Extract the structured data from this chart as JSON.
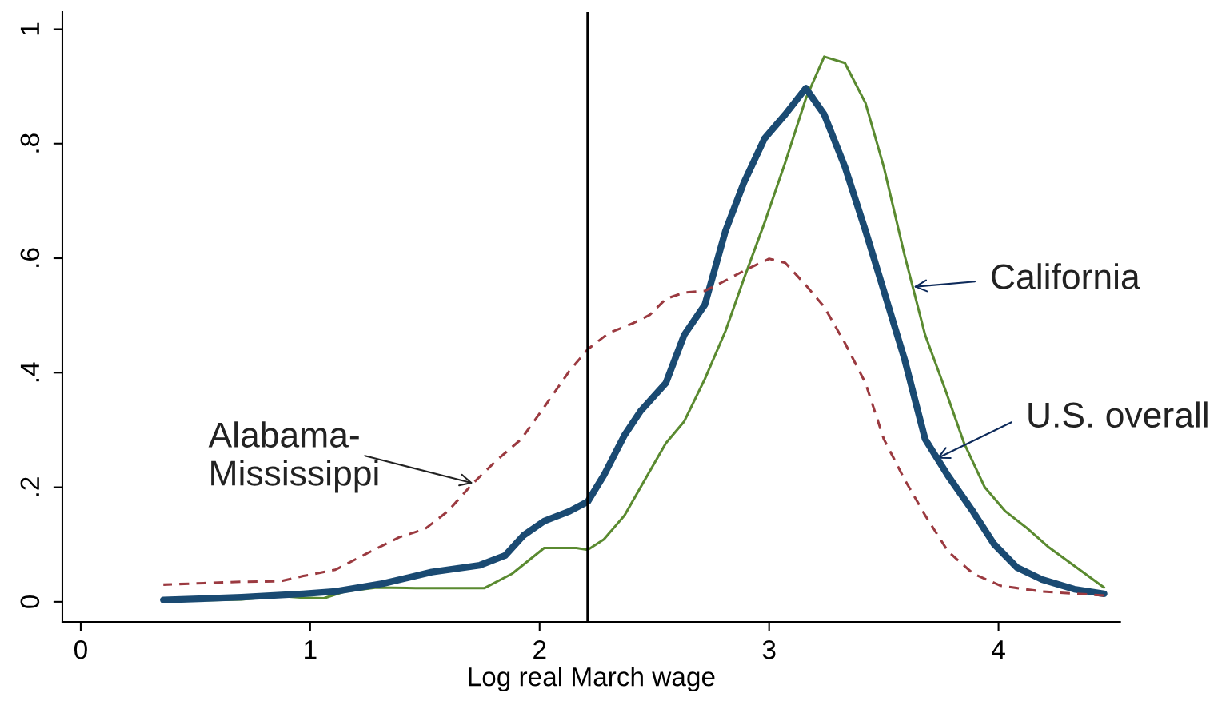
{
  "chart_data": {
    "type": "line",
    "xlabel": "Log real March wage",
    "series": [
      {
        "color": "#9b3a40",
        "line_style": "dashed",
        "x": [
          0.36,
          0.7,
          0.87,
          0.97,
          1.11,
          1.25,
          1.39,
          1.5,
          1.6,
          1.71,
          1.81,
          1.92,
          2.02,
          2.13,
          2.21,
          2.3,
          2.41,
          2.48,
          2.55,
          2.63,
          2.72,
          2.81,
          2.89,
          3.0,
          3.07,
          3.16,
          3.24,
          3.33,
          3.42,
          3.5,
          3.59,
          3.68,
          3.78,
          3.89,
          4.01,
          4.19,
          4.46
        ],
        "values": [
          0.03,
          0.035,
          0.036,
          0.045,
          0.056,
          0.085,
          0.113,
          0.127,
          0.158,
          0.207,
          0.246,
          0.284,
          0.34,
          0.403,
          0.441,
          0.469,
          0.487,
          0.501,
          0.529,
          0.54,
          0.543,
          0.561,
          0.578,
          0.599,
          0.592,
          0.553,
          0.515,
          0.452,
          0.382,
          0.284,
          0.214,
          0.151,
          0.088,
          0.049,
          0.028,
          0.018,
          0.011
        ]
      },
      {
        "color": "#5a8a30",
        "line_style": "solid",
        "x": [
          0.36,
          0.7,
          0.87,
          0.97,
          1.06,
          1.15,
          1.29,
          1.46,
          1.76,
          1.88,
          2.02,
          2.16,
          2.21,
          2.28,
          2.37,
          2.46,
          2.55,
          2.63,
          2.72,
          2.81,
          2.89,
          2.98,
          3.07,
          3.16,
          3.24,
          3.33,
          3.42,
          3.5,
          3.59,
          3.68,
          3.77,
          3.85,
          3.94,
          4.03,
          4.12,
          4.22,
          4.46
        ],
        "values": [
          0.001,
          0.004,
          0.01,
          0.007,
          0.006,
          0.018,
          0.025,
          0.024,
          0.024,
          0.049,
          0.094,
          0.094,
          0.091,
          0.109,
          0.151,
          0.214,
          0.277,
          0.315,
          0.389,
          0.473,
          0.564,
          0.662,
          0.767,
          0.879,
          0.952,
          0.941,
          0.871,
          0.759,
          0.606,
          0.466,
          0.368,
          0.277,
          0.2,
          0.158,
          0.13,
          0.095,
          0.025
        ]
      },
      {
        "color": "#1a4a72",
        "line_style": "solid",
        "x": [
          0.36,
          0.7,
          0.97,
          1.11,
          1.32,
          1.53,
          1.74,
          1.85,
          1.93,
          2.02,
          2.13,
          2.21,
          2.28,
          2.37,
          2.44,
          2.55,
          2.63,
          2.72,
          2.81,
          2.89,
          2.98,
          3.07,
          3.16,
          3.24,
          3.33,
          3.42,
          3.5,
          3.59,
          3.68,
          3.78,
          3.89,
          3.98,
          4.08,
          4.19,
          4.33,
          4.46
        ],
        "values": [
          0.003,
          0.008,
          0.014,
          0.018,
          0.032,
          0.052,
          0.064,
          0.081,
          0.116,
          0.141,
          0.158,
          0.175,
          0.221,
          0.291,
          0.333,
          0.382,
          0.466,
          0.519,
          0.648,
          0.732,
          0.809,
          0.851,
          0.897,
          0.851,
          0.76,
          0.648,
          0.543,
          0.424,
          0.284,
          0.22,
          0.157,
          0.101,
          0.06,
          0.039,
          0.022,
          0.014
        ]
      }
    ],
    "ref_lines": [
      {
        "axis": "x",
        "value": 2.21,
        "color": "#000000",
        "line_style": "solid"
      }
    ],
    "annotations": [
      {
        "text": "Alabama-\nMississippi",
        "x": 1.71,
        "y": 0.207
      },
      {
        "text": "California",
        "x": 3.63,
        "y": 0.55
      },
      {
        "text": "U.S. overall",
        "x": 3.73,
        "y": 0.25
      }
    ],
    "xlim": [
      -0.08,
      4.53
    ],
    "ylim": [
      -0.035,
      1.03
    ],
    "xticks": [
      0,
      1,
      2,
      3,
      4
    ],
    "yticks": [
      0,
      {
        "value": 0.2,
        "label": ".2"
      },
      {
        "value": 0.4,
        "label": ".4"
      },
      {
        "value": 0.6,
        "label": ".6"
      },
      {
        "value": 0.8,
        "label": ".8"
      },
      1
    ],
    "grid": false,
    "legend": false,
    "marker": "none"
  }
}
